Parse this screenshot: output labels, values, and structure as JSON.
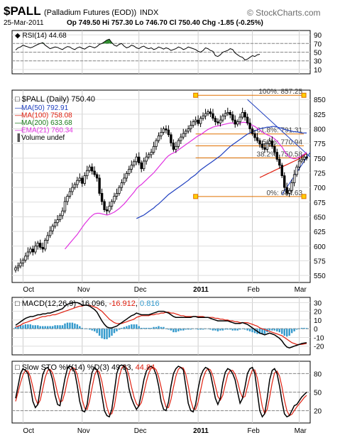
{
  "header": {
    "symbol": "$PALL",
    "desc": "(Palladium Futures (EOD))",
    "exchange": "INDX",
    "date": "25-Mar-2011",
    "quote": "Op 749.50  Hi 757.30  Lo 746.70  Cl 750.40  Chg -1.85 (-0.25%)",
    "brand": "© StockCharts.com"
  },
  "x_axis_labels": [
    "Oct",
    "Nov",
    "Dec",
    "2011",
    "Feb",
    "Mar"
  ],
  "colors": {
    "price": "#000000",
    "ma50": "#1f3fbf",
    "ma100": "#e02010",
    "ma200": "#1a7a1a",
    "ema21": "#e030e0",
    "fib": "#e07000",
    "signal": "#e02010",
    "histogram": "#3399cc",
    "rsi_fill": "#2e8b2e",
    "trend": "#1f3fbf"
  },
  "chart_data": [
    {
      "type": "line",
      "title": "RSI(14) 44.68",
      "indicator": "RSI(14)",
      "value": 44.68,
      "y_ticks": [
        90,
        70,
        50,
        30,
        10
      ],
      "ylim": [
        0,
        100
      ],
      "guides": [
        70,
        50,
        30
      ],
      "values": [
        55,
        60,
        62,
        66,
        64,
        62,
        60,
        62,
        65,
        68,
        70,
        72,
        66,
        62,
        58,
        60,
        62,
        61,
        58,
        56,
        60,
        63,
        62,
        58,
        56,
        60,
        62,
        59,
        57,
        61,
        64,
        62,
        60,
        63,
        68,
        70,
        74,
        78,
        80,
        72,
        66,
        64,
        68,
        70,
        64,
        60,
        62,
        66,
        64,
        60,
        58,
        62,
        64,
        60,
        58,
        60,
        56,
        58,
        62,
        60,
        57,
        60,
        58,
        54,
        56,
        58,
        62,
        60,
        56,
        58,
        62,
        60,
        58,
        56,
        52,
        50,
        54,
        60,
        58,
        54,
        52,
        42,
        40,
        44,
        50,
        52,
        54,
        58,
        56,
        48,
        44,
        40,
        38,
        32,
        34,
        38,
        42,
        40,
        44,
        45
      ]
    },
    {
      "type": "candlestick",
      "title": "$PALL (Daily) 750.40",
      "legend": [
        {
          "name": "MA(50)",
          "value": "792.91",
          "key": "ma50"
        },
        {
          "name": "MA(100)",
          "value": "758.08",
          "key": "ma100"
        },
        {
          "name": "MA(200)",
          "value": "633.68",
          "key": "ma200"
        },
        {
          "name": "EMA(21)",
          "value": "760.34",
          "key": "ema21"
        },
        {
          "name": "Volume undef",
          "value": "",
          "key": "volume"
        }
      ],
      "y_ticks": [
        850,
        825,
        800,
        775,
        750,
        725,
        700,
        675,
        650,
        625,
        600,
        575,
        550
      ],
      "ylim": [
        538,
        866
      ],
      "close": [
        563,
        566,
        571,
        576,
        583,
        590,
        595,
        590,
        600,
        605,
        598,
        595,
        610,
        618,
        626,
        634,
        640,
        645,
        652,
        660,
        676,
        685,
        693,
        700,
        705,
        712,
        716,
        707,
        720,
        729,
        735,
        728,
        722,
        716,
        690,
        676,
        662,
        660,
        668,
        676,
        685,
        690,
        700,
        708,
        716,
        724,
        731,
        738,
        744,
        752,
        742,
        732,
        745,
        752,
        756,
        760,
        770,
        780,
        788,
        794,
        800,
        798,
        790,
        776,
        765,
        770,
        780,
        786,
        792,
        796,
        800,
        806,
        812,
        815,
        809,
        818,
        822,
        826,
        829,
        826,
        818,
        812,
        810,
        815,
        822,
        826,
        828,
        824,
        815,
        808,
        812,
        820,
        828,
        820,
        810,
        800,
        792,
        785,
        780,
        774,
        768,
        765,
        775,
        779,
        770,
        760,
        748,
        738,
        720,
        700,
        690,
        695,
        708,
        722,
        735,
        745,
        748,
        752,
        750
      ],
      "ma50": [
        null,
        null,
        null,
        null,
        null,
        null,
        null,
        null,
        null,
        null,
        null,
        null,
        null,
        null,
        null,
        null,
        null,
        null,
        null,
        null,
        null,
        null,
        null,
        null,
        null,
        null,
        null,
        null,
        null,
        null,
        null,
        null,
        null,
        null,
        null,
        null,
        null,
        null,
        null,
        null,
        null,
        null,
        null,
        null,
        null,
        null,
        null,
        null,
        null,
        647,
        649,
        651,
        653,
        656,
        659,
        662,
        665,
        669,
        672,
        676,
        680,
        684,
        688,
        691,
        694,
        697,
        700,
        703,
        706,
        709,
        712,
        716,
        719,
        722,
        726,
        730,
        733,
        736,
        739,
        742,
        745,
        748,
        751,
        754,
        758,
        762,
        766,
        770,
        773,
        776,
        779,
        782,
        785,
        788,
        791,
        793,
        795,
        797,
        798,
        800,
        801,
        802,
        803,
        803,
        804,
        804,
        803,
        802,
        801,
        799,
        798,
        797,
        796,
        795,
        795,
        794,
        793,
        793,
        792.91
      ],
      "ma100": [
        null,
        null,
        null,
        null,
        null,
        null,
        null,
        null,
        null,
        null,
        null,
        null,
        null,
        null,
        null,
        null,
        null,
        null,
        null,
        null,
        null,
        null,
        null,
        null,
        null,
        null,
        null,
        null,
        null,
        null,
        null,
        null,
        null,
        null,
        null,
        null,
        null,
        null,
        null,
        null,
        null,
        null,
        null,
        null,
        null,
        null,
        null,
        null,
        null,
        null,
        null,
        null,
        null,
        null,
        null,
        null,
        null,
        null,
        null,
        null,
        null,
        null,
        null,
        null,
        null,
        null,
        null,
        null,
        null,
        null,
        null,
        null,
        null,
        null,
        null,
        null,
        null,
        null,
        null,
        null,
        null,
        null,
        null,
        null,
        null,
        null,
        null,
        null,
        null,
        null,
        null,
        null,
        null,
        null,
        null,
        null,
        null,
        null,
        null,
        717,
        719,
        721,
        723,
        725,
        727,
        729,
        731,
        733,
        735,
        737,
        739,
        741,
        743,
        745,
        747,
        749,
        752,
        755,
        758.08
      ],
      "ma200": [
        null,
        null,
        null,
        null,
        null,
        null,
        null,
        null,
        null,
        null,
        null,
        null,
        null,
        null,
        null,
        null,
        null,
        null,
        null,
        null,
        null,
        null,
        null,
        null,
        null,
        null,
        null,
        null,
        null,
        null,
        null,
        null,
        null,
        null,
        null,
        null,
        null,
        null,
        null,
        null,
        null,
        null,
        null,
        null,
        null,
        null,
        null,
        null,
        null,
        null,
        null,
        null,
        null,
        null,
        null,
        null,
        null,
        null,
        null,
        null,
        null,
        null,
        null,
        null,
        null,
        null,
        null,
        null,
        null,
        null,
        null,
        null,
        null,
        null,
        null,
        null,
        null,
        null,
        null,
        null,
        null,
        null,
        null,
        null,
        null,
        null,
        null,
        null,
        null,
        null,
        null,
        null,
        null,
        null,
        null,
        null,
        null,
        null,
        null,
        null,
        null,
        null,
        null,
        null,
        null,
        null,
        null,
        null,
        null,
        null,
        null,
        null,
        null,
        null,
        null,
        null,
        null,
        null,
        633.68
      ],
      "ema21": [
        null,
        null,
        null,
        null,
        null,
        null,
        null,
        null,
        null,
        null,
        null,
        null,
        null,
        null,
        null,
        null,
        null,
        null,
        null,
        null,
        595,
        600,
        605,
        610,
        615,
        620,
        626,
        632,
        638,
        643,
        648,
        652,
        655,
        656,
        656,
        655,
        654,
        653,
        654,
        656,
        658,
        661,
        664,
        668,
        672,
        677,
        682,
        687,
        692,
        698,
        702,
        705,
        709,
        713,
        717,
        721,
        725,
        730,
        735,
        740,
        745,
        750,
        754,
        757,
        759,
        761,
        764,
        767,
        770,
        773,
        776,
        779,
        782,
        785,
        788,
        790,
        793,
        796,
        799,
        801,
        803,
        804,
        805,
        806,
        807,
        808,
        809,
        810,
        810,
        809,
        809,
        810,
        811,
        811,
        810,
        808,
        806,
        804,
        801,
        798,
        795,
        792,
        790,
        788,
        786,
        783,
        779,
        774,
        769,
        762,
        756,
        752,
        750,
        749,
        750,
        752,
        754,
        757,
        760.34
      ],
      "fib_levels": [
        {
          "label": "100%: 857.25",
          "value": 857.25
        },
        {
          "label": "61.8%: 791.31",
          "value": 791.31
        },
        {
          "label": "50%: 770.94",
          "value": 770.94
        },
        {
          "label": "38.2%: 750.58",
          "value": 750.58
        },
        {
          "label": "0%: 684.63",
          "value": 684.63
        }
      ]
    },
    {
      "type": "line",
      "title": "MACD(12,26,9) -16.096, -16.912, 0.816",
      "legend": [
        {
          "name": "MACD(12,26,9)",
          "value": "-16.096",
          "key": "price"
        },
        {
          "name": "",
          "value": "-16.912",
          "key": "signal"
        },
        {
          "name": "",
          "value": "0.816",
          "key": "histogram"
        }
      ],
      "y_ticks": [
        30,
        20,
        10,
        0,
        -10,
        -20
      ],
      "ylim": [
        -30,
        36
      ],
      "macd": [
        4,
        6,
        8,
        10,
        12,
        13,
        14,
        14,
        15,
        16,
        16,
        17,
        17,
        18,
        18,
        19,
        20,
        21,
        22,
        23,
        26,
        28,
        29,
        30,
        30,
        30,
        29,
        27,
        27,
        27,
        26,
        24,
        22,
        19,
        14,
        9,
        5,
        2,
        1,
        1,
        2,
        3,
        5,
        7,
        9,
        11,
        13,
        15,
        16,
        18,
        17,
        16,
        16,
        16,
        16,
        17,
        18,
        19,
        20,
        20,
        20,
        19,
        18,
        16,
        14,
        13,
        13,
        13,
        13,
        13,
        13,
        13,
        14,
        14,
        13,
        13,
        13,
        13,
        13,
        12,
        11,
        10,
        9,
        9,
        9,
        9,
        9,
        8,
        7,
        6,
        6,
        6,
        7,
        6,
        5,
        3,
        1,
        -1,
        -3,
        -5,
        -6,
        -7,
        -6,
        -5,
        -6,
        -7,
        -9,
        -11,
        -14,
        -18,
        -21,
        -22,
        -21,
        -20,
        -19,
        -18,
        -17,
        -16.5,
        -16.096
      ],
      "signal": [
        2,
        3,
        4,
        6,
        7,
        8,
        9,
        10,
        11,
        12,
        13,
        14,
        14,
        15,
        15,
        16,
        16,
        17,
        18,
        19,
        20,
        21,
        22,
        23,
        24,
        25,
        26,
        26,
        27,
        27,
        27,
        26,
        25,
        24,
        22,
        20,
        17,
        14,
        11,
        9,
        7,
        6,
        6,
        6,
        7,
        8,
        9,
        10,
        11,
        13,
        14,
        15,
        15,
        15,
        15,
        16,
        16,
        17,
        17,
        18,
        18,
        19,
        19,
        18,
        18,
        17,
        16,
        15,
        15,
        14,
        14,
        14,
        14,
        14,
        14,
        14,
        14,
        13,
        13,
        13,
        13,
        12,
        12,
        11,
        11,
        10,
        10,
        9,
        9,
        8,
        8,
        7,
        7,
        7,
        7,
        6,
        5,
        4,
        3,
        1,
        0,
        -1,
        -2,
        -3,
        -4,
        -5,
        -6,
        -7,
        -8,
        -10,
        -12,
        -14,
        -16,
        -17,
        -18,
        -18,
        -18,
        -17.5,
        -16.912
      ]
    },
    {
      "type": "line",
      "title": "Slow STO %K(14) %D(3) 49.83, 44.84",
      "legend": [
        {
          "name": "Slow STO %K(14) %D(3)",
          "value": "49.83",
          "key": "price"
        },
        {
          "name": "",
          "value": "44.84",
          "key": "signal"
        }
      ],
      "y_ticks": [
        80,
        50,
        20
      ],
      "ylim": [
        0,
        100
      ],
      "guides": [
        80,
        50,
        20
      ],
      "k": [
        40,
        60,
        80,
        88,
        85,
        80,
        60,
        35,
        25,
        30,
        55,
        78,
        88,
        90,
        84,
        70,
        45,
        30,
        28,
        50,
        72,
        88,
        92,
        90,
        82,
        60,
        35,
        20,
        18,
        30,
        60,
        82,
        90,
        86,
        70,
        45,
        20,
        12,
        10,
        22,
        50,
        80,
        92,
        94,
        92,
        80,
        55,
        40,
        30,
        22,
        28,
        48,
        70,
        84,
        90,
        92,
        88,
        78,
        60,
        35,
        22,
        20,
        34,
        60,
        80,
        88,
        92,
        90,
        86,
        60,
        32,
        20,
        18,
        30,
        55,
        75,
        85,
        90,
        88,
        80,
        60,
        40,
        30,
        40,
        65,
        82,
        88,
        86,
        80,
        70,
        50,
        32,
        40,
        58,
        80,
        88,
        90,
        80,
        50,
        20,
        10,
        15,
        40,
        70,
        85,
        88,
        80,
        60,
        35,
        15,
        10,
        12,
        20,
        28,
        30,
        36,
        42,
        46,
        49.83
      ],
      "d": [
        35,
        50,
        65,
        78,
        85,
        84,
        75,
        58,
        40,
        30,
        37,
        55,
        74,
        85,
        87,
        81,
        66,
        48,
        34,
        36,
        50,
        70,
        84,
        90,
        88,
        78,
        59,
        38,
        24,
        22,
        36,
        57,
        77,
        86,
        82,
        67,
        45,
        26,
        14,
        15,
        27,
        51,
        74,
        89,
        93,
        89,
        76,
        58,
        42,
        31,
        27,
        33,
        49,
        67,
        81,
        89,
        90,
        86,
        75,
        58,
        39,
        26,
        25,
        38,
        58,
        76,
        87,
        90,
        89,
        79,
        60,
        37,
        23,
        22,
        34,
        53,
        72,
        83,
        88,
        86,
        76,
        60,
        43,
        37,
        45,
        62,
        78,
        85,
        85,
        79,
        67,
        51,
        41,
        43,
        59,
        75,
        86,
        86,
        73,
        50,
        27,
        15,
        22,
        42,
        65,
        81,
        84,
        76,
        58,
        37,
        20,
        12,
        14,
        20,
        26,
        31,
        36,
        41,
        44.84
      ]
    }
  ]
}
